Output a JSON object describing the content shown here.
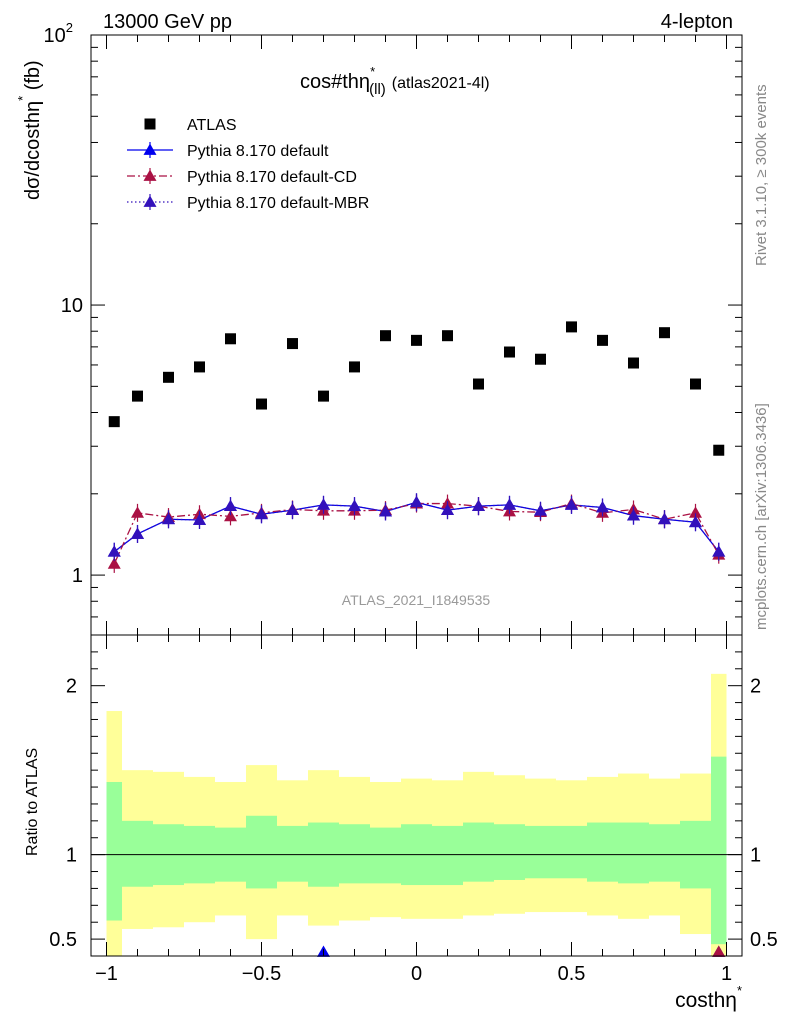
{
  "header": {
    "left": "13000 GeV pp",
    "right": "4-lepton"
  },
  "side_labels": {
    "rivet": "Rivet 3.1.10, ≥ 300k events",
    "mcplots": "mcplots.cern.ch [arXiv:1306.3436]"
  },
  "watermark": "ATLAS_2021_I1849535",
  "chart_data": [
    {
      "type": "scatter",
      "title_main": "cos#thη",
      "title_sup": "*",
      "title_sub": "(ll)",
      "title_tag": "(atlas2021-4l)",
      "ylabel_main": "dσ/dcosthη",
      "ylabel_sup": "*",
      "ylabel_tail": " (fb)",
      "yscale": "log",
      "ylim": [
        0.6,
        100
      ],
      "xlim": [
        -1.05,
        1.05
      ],
      "y_ticks": [
        {
          "value": 1,
          "label": "1"
        },
        {
          "value": 10,
          "label": "10"
        },
        {
          "value": 100,
          "label": "10",
          "sup": "2"
        }
      ],
      "legend_placement": "top-left",
      "x": [
        -0.975,
        -0.9,
        -0.8,
        -0.7,
        -0.6,
        -0.5,
        -0.4,
        -0.3,
        -0.2,
        -0.1,
        0.0,
        0.1,
        0.2,
        0.3,
        0.4,
        0.5,
        0.6,
        0.7,
        0.8,
        0.9,
        0.975
      ],
      "series": [
        {
          "name": "ATLAS",
          "color": "#000000",
          "marker": "square",
          "line": "none",
          "values": [
            3.7,
            4.6,
            5.4,
            5.9,
            7.5,
            4.3,
            7.2,
            4.6,
            5.9,
            7.7,
            7.4,
            7.7,
            5.1,
            6.7,
            6.3,
            8.3,
            7.4,
            6.1,
            7.9,
            5.1,
            2.9
          ]
        },
        {
          "name": "Pythia 8.170 default",
          "color": "#0000ee",
          "marker": "triangle",
          "line": "solid",
          "values": [
            1.22,
            1.42,
            1.61,
            1.6,
            1.8,
            1.68,
            1.74,
            1.82,
            1.8,
            1.72,
            1.86,
            1.74,
            1.8,
            1.82,
            1.73,
            1.82,
            1.78,
            1.66,
            1.61,
            1.57,
            1.22
          ]
        },
        {
          "name": "Pythia 8.170 default-CD",
          "color": "#aa1144",
          "marker": "triangle",
          "line": "dashdot",
          "values": [
            1.1,
            1.7,
            1.64,
            1.68,
            1.65,
            1.7,
            1.75,
            1.73,
            1.73,
            1.74,
            1.84,
            1.84,
            1.8,
            1.72,
            1.71,
            1.84,
            1.7,
            1.75,
            1.61,
            1.7,
            1.19
          ]
        },
        {
          "name": "Pythia 8.170 default-MBR",
          "color": "#3311bb",
          "marker": "triangle",
          "line": "dotted",
          "values": [
            1.22,
            1.42,
            1.61,
            1.6,
            1.8,
            1.68,
            1.74,
            1.82,
            1.8,
            1.72,
            1.86,
            1.74,
            1.8,
            1.82,
            1.73,
            1.82,
            1.78,
            1.66,
            1.61,
            1.57,
            1.22
          ]
        }
      ]
    },
    {
      "type": "area",
      "ylabel": "Ratio to ATLAS",
      "xlabel_main": "costhη",
      "xlabel_sup": "*",
      "xlim": [
        -1.05,
        1.05
      ],
      "ylim": [
        0.4,
        2.3
      ],
      "y_ticks": [
        {
          "value": 0.5,
          "label": "0.5"
        },
        {
          "value": 1,
          "label": "1"
        },
        {
          "value": 2,
          "label": "2"
        }
      ],
      "x_ticks": [
        {
          "value": -1,
          "label": "−1"
        },
        {
          "value": -0.5,
          "label": "−0.5"
        },
        {
          "value": 0,
          "label": "0"
        },
        {
          "value": 0.5,
          "label": "0.5"
        },
        {
          "value": 1,
          "label": "1"
        }
      ],
      "reference_line": 1,
      "bin_edges": [
        -1.0,
        -0.95,
        -0.85,
        -0.75,
        -0.65,
        -0.55,
        -0.45,
        -0.35,
        -0.25,
        -0.15,
        -0.05,
        0.05,
        0.15,
        0.25,
        0.35,
        0.45,
        0.55,
        0.65,
        0.75,
        0.85,
        0.95,
        1.0
      ],
      "bands": [
        {
          "name": "2 sigma",
          "color": "#ffff99",
          "low": [
            0.4,
            0.56,
            0.57,
            0.6,
            0.64,
            0.5,
            0.64,
            0.58,
            0.61,
            0.63,
            0.62,
            0.62,
            0.64,
            0.65,
            0.66,
            0.66,
            0.64,
            0.62,
            0.64,
            0.53,
            0.4
          ],
          "high": [
            1.85,
            1.5,
            1.49,
            1.46,
            1.43,
            1.53,
            1.44,
            1.5,
            1.46,
            1.43,
            1.45,
            1.44,
            1.49,
            1.47,
            1.45,
            1.44,
            1.46,
            1.48,
            1.45,
            1.48,
            2.07
          ]
        },
        {
          "name": "1 sigma",
          "color": "#99ff99",
          "low": [
            0.61,
            0.81,
            0.82,
            0.83,
            0.84,
            0.8,
            0.84,
            0.81,
            0.83,
            0.83,
            0.82,
            0.82,
            0.84,
            0.85,
            0.86,
            0.86,
            0.84,
            0.83,
            0.84,
            0.8,
            0.47
          ],
          "high": [
            1.43,
            1.2,
            1.18,
            1.17,
            1.16,
            1.23,
            1.17,
            1.19,
            1.18,
            1.16,
            1.18,
            1.17,
            1.19,
            1.18,
            1.17,
            1.17,
            1.19,
            1.19,
            1.18,
            1.2,
            1.58
          ]
        }
      ],
      "ratio_markers": [
        {
          "x": -0.3,
          "y": 0.35,
          "color": "#0000ee"
        },
        {
          "x": 0.975,
          "y": 0.38,
          "color": "#3311bb"
        },
        {
          "x": 0.975,
          "y": 0.36,
          "color": "#aa1144"
        }
      ]
    }
  ]
}
